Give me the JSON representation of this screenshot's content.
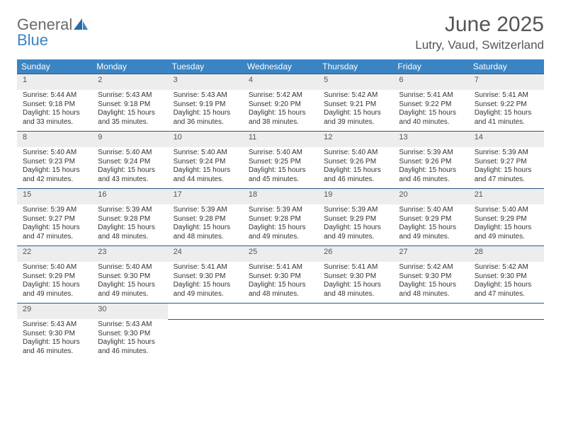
{
  "logo": {
    "text1": "General",
    "text2": "Blue"
  },
  "title": "June 2025",
  "location": "Lutry, Vaud, Switzerland",
  "colors": {
    "header_bg": "#3a84c4",
    "header_text": "#ffffff",
    "daynum_bg": "#ededed",
    "border": "#2c5a8a",
    "title_color": "#555555"
  },
  "day_headers": [
    "Sunday",
    "Monday",
    "Tuesday",
    "Wednesday",
    "Thursday",
    "Friday",
    "Saturday"
  ],
  "weeks": [
    [
      {
        "n": "1",
        "sr": "5:44 AM",
        "ss": "9:18 PM",
        "dl": "15 hours and 33 minutes."
      },
      {
        "n": "2",
        "sr": "5:43 AM",
        "ss": "9:18 PM",
        "dl": "15 hours and 35 minutes."
      },
      {
        "n": "3",
        "sr": "5:43 AM",
        "ss": "9:19 PM",
        "dl": "15 hours and 36 minutes."
      },
      {
        "n": "4",
        "sr": "5:42 AM",
        "ss": "9:20 PM",
        "dl": "15 hours and 38 minutes."
      },
      {
        "n": "5",
        "sr": "5:42 AM",
        "ss": "9:21 PM",
        "dl": "15 hours and 39 minutes."
      },
      {
        "n": "6",
        "sr": "5:41 AM",
        "ss": "9:22 PM",
        "dl": "15 hours and 40 minutes."
      },
      {
        "n": "7",
        "sr": "5:41 AM",
        "ss": "9:22 PM",
        "dl": "15 hours and 41 minutes."
      }
    ],
    [
      {
        "n": "8",
        "sr": "5:40 AM",
        "ss": "9:23 PM",
        "dl": "15 hours and 42 minutes."
      },
      {
        "n": "9",
        "sr": "5:40 AM",
        "ss": "9:24 PM",
        "dl": "15 hours and 43 minutes."
      },
      {
        "n": "10",
        "sr": "5:40 AM",
        "ss": "9:24 PM",
        "dl": "15 hours and 44 minutes."
      },
      {
        "n": "11",
        "sr": "5:40 AM",
        "ss": "9:25 PM",
        "dl": "15 hours and 45 minutes."
      },
      {
        "n": "12",
        "sr": "5:40 AM",
        "ss": "9:26 PM",
        "dl": "15 hours and 46 minutes."
      },
      {
        "n": "13",
        "sr": "5:39 AM",
        "ss": "9:26 PM",
        "dl": "15 hours and 46 minutes."
      },
      {
        "n": "14",
        "sr": "5:39 AM",
        "ss": "9:27 PM",
        "dl": "15 hours and 47 minutes."
      }
    ],
    [
      {
        "n": "15",
        "sr": "5:39 AM",
        "ss": "9:27 PM",
        "dl": "15 hours and 47 minutes."
      },
      {
        "n": "16",
        "sr": "5:39 AM",
        "ss": "9:28 PM",
        "dl": "15 hours and 48 minutes."
      },
      {
        "n": "17",
        "sr": "5:39 AM",
        "ss": "9:28 PM",
        "dl": "15 hours and 48 minutes."
      },
      {
        "n": "18",
        "sr": "5:39 AM",
        "ss": "9:28 PM",
        "dl": "15 hours and 49 minutes."
      },
      {
        "n": "19",
        "sr": "5:39 AM",
        "ss": "9:29 PM",
        "dl": "15 hours and 49 minutes."
      },
      {
        "n": "20",
        "sr": "5:40 AM",
        "ss": "9:29 PM",
        "dl": "15 hours and 49 minutes."
      },
      {
        "n": "21",
        "sr": "5:40 AM",
        "ss": "9:29 PM",
        "dl": "15 hours and 49 minutes."
      }
    ],
    [
      {
        "n": "22",
        "sr": "5:40 AM",
        "ss": "9:29 PM",
        "dl": "15 hours and 49 minutes."
      },
      {
        "n": "23",
        "sr": "5:40 AM",
        "ss": "9:30 PM",
        "dl": "15 hours and 49 minutes."
      },
      {
        "n": "24",
        "sr": "5:41 AM",
        "ss": "9:30 PM",
        "dl": "15 hours and 49 minutes."
      },
      {
        "n": "25",
        "sr": "5:41 AM",
        "ss": "9:30 PM",
        "dl": "15 hours and 48 minutes."
      },
      {
        "n": "26",
        "sr": "5:41 AM",
        "ss": "9:30 PM",
        "dl": "15 hours and 48 minutes."
      },
      {
        "n": "27",
        "sr": "5:42 AM",
        "ss": "9:30 PM",
        "dl": "15 hours and 48 minutes."
      },
      {
        "n": "28",
        "sr": "5:42 AM",
        "ss": "9:30 PM",
        "dl": "15 hours and 47 minutes."
      }
    ],
    [
      {
        "n": "29",
        "sr": "5:43 AM",
        "ss": "9:30 PM",
        "dl": "15 hours and 46 minutes."
      },
      {
        "n": "30",
        "sr": "5:43 AM",
        "ss": "9:30 PM",
        "dl": "15 hours and 46 minutes."
      },
      null,
      null,
      null,
      null,
      null
    ]
  ],
  "labels": {
    "sunrise": "Sunrise: ",
    "sunset": "Sunset: ",
    "daylight": "Daylight: "
  }
}
